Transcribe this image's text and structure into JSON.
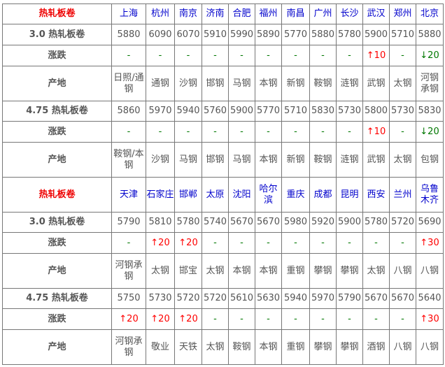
{
  "colors": {
    "header": "#e00000",
    "city": "#0000cc",
    "up": "#ff0000",
    "down": "#007700",
    "flat": "#007700"
  },
  "sections": [
    {
      "title": "热轧板卷",
      "cities": [
        "上海",
        "杭州",
        "南京",
        "济南",
        "合肥",
        "福州",
        "南昌",
        "广州",
        "长沙",
        "武汉",
        "郑州",
        "北京"
      ],
      "groups": [
        {
          "spec": "3.0 热轧板卷",
          "prices": [
            "5880",
            "6090",
            "6070",
            "5910",
            "5990",
            "5890",
            "5770",
            "5880",
            "5780",
            "5900",
            "5710",
            "5880"
          ],
          "change_label": "涨跌",
          "changes": [
            "-",
            "-",
            "-",
            "-",
            "-",
            "-",
            "-",
            "-",
            "-",
            "↑10",
            "-",
            "↓20"
          ],
          "origin_label": "产地",
          "origins": [
            "日照/通钢",
            "通钢",
            "沙钢",
            "邯钢",
            "马钢",
            "本钢",
            "新钢",
            "鞍钢",
            "涟钢",
            "武钢",
            "太钢",
            "河钢承钢"
          ]
        },
        {
          "spec": "4.75 热轧板卷",
          "prices": [
            "5860",
            "5970",
            "5940",
            "5760",
            "5900",
            "5770",
            "5710",
            "5830",
            "5730",
            "5800",
            "5730",
            "5830"
          ],
          "change_label": "涨跌",
          "changes": [
            "-",
            "-",
            "-",
            "-",
            "-",
            "-",
            "-",
            "-",
            "-",
            "↑10",
            "-",
            "↓20"
          ],
          "origin_label": "产地",
          "origins": [
            "鞍钢/本钢",
            "沙钢",
            "马钢",
            "邯钢",
            "马钢",
            "本钢",
            "新钢",
            "鞍钢",
            "涟钢",
            "武钢",
            "太钢",
            "包钢"
          ]
        }
      ]
    },
    {
      "title": "热轧板卷",
      "cities": [
        "天津",
        "石家庄",
        "邯郸",
        "太原",
        "沈阳",
        "哈尔滨",
        "重庆",
        "成都",
        "昆明",
        "西安",
        "兰州",
        "乌鲁木齐"
      ],
      "groups": [
        {
          "spec": "3.0 热轧板卷",
          "prices": [
            "5790",
            "5810",
            "5780",
            "5740",
            "5670",
            "5670",
            "5980",
            "5920",
            "5900",
            "5780",
            "5720",
            "5690"
          ],
          "change_label": "涨跌",
          "changes": [
            "-",
            "↑20",
            "↑20",
            "-",
            "-",
            "-",
            "-",
            "-",
            "-",
            "-",
            "-",
            "↑30"
          ],
          "origin_label": "产地",
          "origins": [
            "河钢承钢",
            "太钢",
            "邯宝",
            "太钢",
            "本钢",
            "本钢",
            "重钢",
            "攀钢",
            "攀钢",
            "太钢",
            "八钢",
            "八钢"
          ]
        },
        {
          "spec": "4.75 热轧板卷",
          "prices": [
            "5750",
            "5730",
            "5720",
            "5720",
            "5610",
            "5630",
            "5940",
            "5970",
            "5790",
            "5670",
            "5670",
            "5640"
          ],
          "change_label": "涨跌",
          "changes": [
            "↑20",
            "↑20",
            "↑20",
            "-",
            "-",
            "-",
            "-",
            "-",
            "-",
            "-",
            "-",
            "↑30"
          ],
          "origin_label": "产地",
          "origins": [
            "河钢承钢",
            "敬业",
            "天铁",
            "太钢",
            "鞍钢",
            "本钢",
            "重钢",
            "攀钢",
            "攀钢",
            "酒钢",
            "八钢",
            "八钢"
          ]
        }
      ]
    }
  ]
}
